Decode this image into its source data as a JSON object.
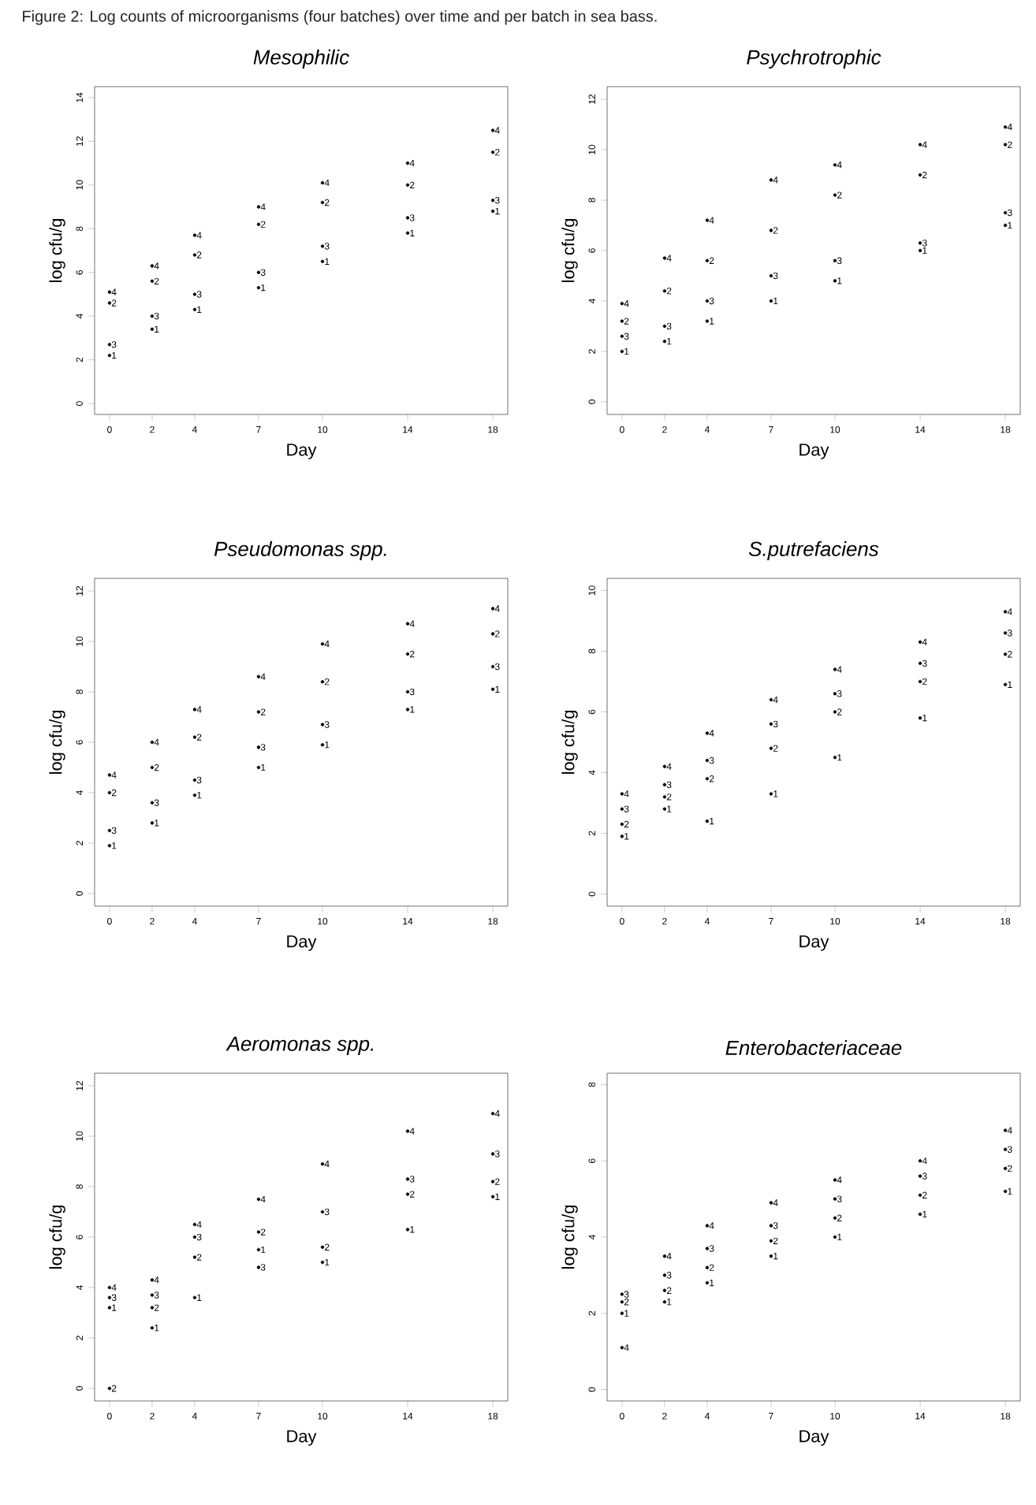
{
  "chart_data": [
    {
      "type": "scatter",
      "title": "Mesophilic",
      "marker": "circle",
      "xlabel": "Day",
      "ylabel": "log cfu/g",
      "annotations": [
        "Figure 2: Log counts of microorganisms (four batches) over time and per batch in sea bass."
      ],
      "x": [
        0,
        2,
        4,
        7,
        10,
        14,
        18
      ],
      "xlim": [
        -0.7,
        18.7
      ],
      "xticks": [
        0,
        2,
        4,
        7,
        10,
        14,
        18
      ],
      "ylim": [
        -0.5,
        14.5
      ],
      "yticks": [
        0,
        2,
        4,
        6,
        8,
        10,
        12,
        14
      ],
      "series": [
        {
          "name": "1",
          "color": "#000000",
          "values": [
            2.2,
            3.4,
            4.3,
            5.3,
            6.5,
            7.8,
            8.8
          ]
        },
        {
          "name": "2",
          "color": "#000000",
          "values": [
            4.6,
            5.6,
            6.8,
            8.2,
            9.2,
            10.0,
            11.5
          ]
        },
        {
          "name": "3",
          "color": "#000000",
          "values": [
            2.7,
            4.0,
            5.0,
            6.0,
            7.2,
            8.5,
            9.3
          ]
        },
        {
          "name": "4",
          "color": "#000000",
          "values": [
            5.1,
            6.3,
            7.7,
            9.0,
            10.1,
            11.0,
            12.5
          ]
        }
      ]
    },
    {
      "type": "scatter",
      "title": "Psychrotrophic",
      "marker": "circle",
      "xlabel": "Day",
      "ylabel": "log cfu/g",
      "x": [
        0,
        2,
        4,
        7,
        10,
        14,
        18
      ],
      "xlim": [
        -0.7,
        18.7
      ],
      "xticks": [
        0,
        2,
        4,
        7,
        10,
        14,
        18
      ],
      "ylim": [
        -0.5,
        12.5
      ],
      "yticks": [
        0,
        2,
        4,
        6,
        8,
        10,
        12
      ],
      "series": [
        {
          "name": "1",
          "color": "#000000",
          "values": [
            2.0,
            2.4,
            3.2,
            4.0,
            4.8,
            6.0,
            7.0
          ]
        },
        {
          "name": "2",
          "color": "#000000",
          "values": [
            3.2,
            4.4,
            5.6,
            6.8,
            8.2,
            9.0,
            10.2
          ]
        },
        {
          "name": "3",
          "color": "#000000",
          "values": [
            2.6,
            3.0,
            4.0,
            5.0,
            5.6,
            6.3,
            7.5
          ]
        },
        {
          "name": "4",
          "color": "#000000",
          "values": [
            3.9,
            5.7,
            7.2,
            8.8,
            9.4,
            10.2,
            10.9
          ]
        }
      ]
    },
    {
      "type": "scatter",
      "title": "Pseudomonas spp.",
      "marker": "circle",
      "xlabel": "Day",
      "ylabel": "log cfu/g",
      "x": [
        0,
        2,
        4,
        7,
        10,
        14,
        18
      ],
      "xlim": [
        -0.7,
        18.7
      ],
      "xticks": [
        0,
        2,
        4,
        7,
        10,
        14,
        18
      ],
      "ylim": [
        -0.5,
        12.5
      ],
      "yticks": [
        0,
        2,
        4,
        6,
        8,
        10,
        12
      ],
      "series": [
        {
          "name": "1",
          "color": "#000000",
          "values": [
            1.9,
            2.8,
            3.9,
            5.0,
            5.9,
            7.3,
            8.1
          ]
        },
        {
          "name": "2",
          "color": "#000000",
          "values": [
            4.0,
            5.0,
            6.2,
            7.2,
            8.4,
            9.5,
            10.3
          ]
        },
        {
          "name": "3",
          "color": "#000000",
          "values": [
            2.5,
            3.6,
            4.5,
            5.8,
            6.7,
            8.0,
            9.0
          ]
        },
        {
          "name": "4",
          "color": "#000000",
          "values": [
            4.7,
            6.0,
            7.3,
            8.6,
            9.9,
            10.7,
            11.3
          ]
        }
      ]
    },
    {
      "type": "scatter",
      "title": "S.putrefaciens",
      "marker": "circle",
      "xlabel": "Day",
      "ylabel": "log cfu/g",
      "x": [
        0,
        2,
        4,
        7,
        10,
        14,
        18
      ],
      "xlim": [
        -0.7,
        18.7
      ],
      "xticks": [
        0,
        2,
        4,
        7,
        10,
        14,
        18
      ],
      "ylim": [
        -0.4,
        10.4
      ],
      "yticks": [
        0,
        2,
        4,
        6,
        8,
        10
      ],
      "series": [
        {
          "name": "1",
          "color": "#000000",
          "values": [
            1.9,
            2.8,
            2.4,
            3.3,
            4.5,
            5.8,
            6.9
          ]
        },
        {
          "name": "2",
          "color": "#000000",
          "values": [
            2.3,
            3.2,
            3.8,
            4.8,
            6.0,
            7.0,
            7.9
          ]
        },
        {
          "name": "3",
          "color": "#000000",
          "values": [
            2.8,
            3.6,
            4.4,
            5.6,
            6.6,
            7.6,
            8.6
          ]
        },
        {
          "name": "4",
          "color": "#000000",
          "values": [
            3.3,
            4.2,
            5.3,
            6.4,
            7.4,
            8.3,
            9.3
          ]
        }
      ]
    },
    {
      "type": "scatter",
      "title": "Aeromonas spp.",
      "marker": "circle",
      "xlabel": "Day",
      "ylabel": "log cfu/g",
      "x": [
        0,
        2,
        4,
        7,
        10,
        14,
        18
      ],
      "xlim": [
        -0.7,
        18.7
      ],
      "xticks": [
        0,
        2,
        4,
        7,
        10,
        14,
        18
      ],
      "ylim": [
        -0.5,
        12.5
      ],
      "yticks": [
        0,
        2,
        4,
        6,
        8,
        10,
        12
      ],
      "series": [
        {
          "name": "1",
          "color": "#000000",
          "values": [
            3.2,
            2.4,
            3.6,
            5.5,
            5.0,
            6.3,
            7.6
          ]
        },
        {
          "name": "2",
          "color": "#000000",
          "values": [
            0.0,
            3.2,
            5.2,
            6.2,
            5.6,
            7.7,
            8.2
          ]
        },
        {
          "name": "3",
          "color": "#000000",
          "values": [
            3.6,
            3.7,
            6.0,
            4.8,
            7.0,
            8.3,
            9.3
          ]
        },
        {
          "name": "4",
          "color": "#000000",
          "values": [
            4.0,
            4.3,
            6.5,
            7.5,
            8.9,
            10.2,
            10.9
          ]
        }
      ]
    },
    {
      "type": "scatter",
      "title": "Enterobacteriaceae",
      "marker": "circle",
      "xlabel": "Day",
      "ylabel": "log cfu/g",
      "x": [
        0,
        2,
        4,
        7,
        10,
        14,
        18
      ],
      "xlim": [
        -0.7,
        18.7
      ],
      "xticks": [
        0,
        2,
        4,
        7,
        10,
        14,
        18
      ],
      "ylim": [
        -0.3,
        8.3
      ],
      "yticks": [
        0,
        2,
        4,
        6,
        8
      ],
      "series": [
        {
          "name": "1",
          "color": "#000000",
          "values": [
            2.0,
            2.3,
            2.8,
            3.5,
            4.0,
            4.6,
            5.2
          ]
        },
        {
          "name": "2",
          "color": "#000000",
          "values": [
            2.3,
            2.6,
            3.2,
            3.9,
            4.5,
            5.1,
            5.8
          ]
        },
        {
          "name": "3",
          "color": "#000000",
          "values": [
            2.5,
            3.0,
            3.7,
            4.3,
            5.0,
            5.6,
            6.3
          ]
        },
        {
          "name": "4",
          "color": "#000000",
          "values": [
            1.1,
            3.5,
            4.3,
            4.9,
            5.5,
            6.0,
            6.8
          ]
        }
      ]
    }
  ]
}
